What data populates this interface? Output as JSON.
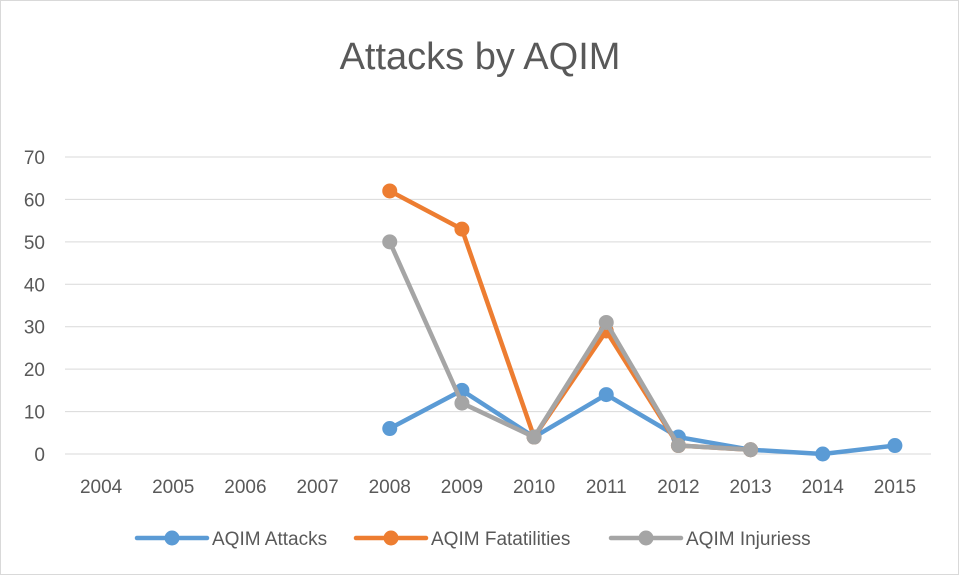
{
  "chart_data": {
    "type": "line",
    "title": "Attacks by AQIM",
    "xlabel": "",
    "ylabel": "",
    "categories": [
      "2004",
      "2005",
      "2006",
      "2007",
      "2008",
      "2009",
      "2010",
      "2011",
      "2012",
      "2013",
      "2014",
      "2015"
    ],
    "yticks": [
      0,
      10,
      20,
      30,
      40,
      50,
      60,
      70
    ],
    "ylim": [
      0,
      70
    ],
    "grid": true,
    "legend_position": "bottom",
    "series": [
      {
        "name": "AQIM Attacks",
        "color": "#5B9BD5",
        "values": [
          null,
          null,
          null,
          null,
          6,
          15,
          4,
          14,
          4,
          1,
          0,
          2
        ]
      },
      {
        "name": "AQIM Fatatilities",
        "color": "#ED7D31",
        "values": [
          null,
          null,
          null,
          null,
          62,
          53,
          4,
          29,
          2,
          1,
          null,
          null
        ]
      },
      {
        "name": "AQIM Injuriess",
        "color": "#A5A5A5",
        "values": [
          null,
          null,
          null,
          null,
          50,
          12,
          4,
          31,
          2,
          1,
          null,
          null
        ]
      }
    ]
  }
}
